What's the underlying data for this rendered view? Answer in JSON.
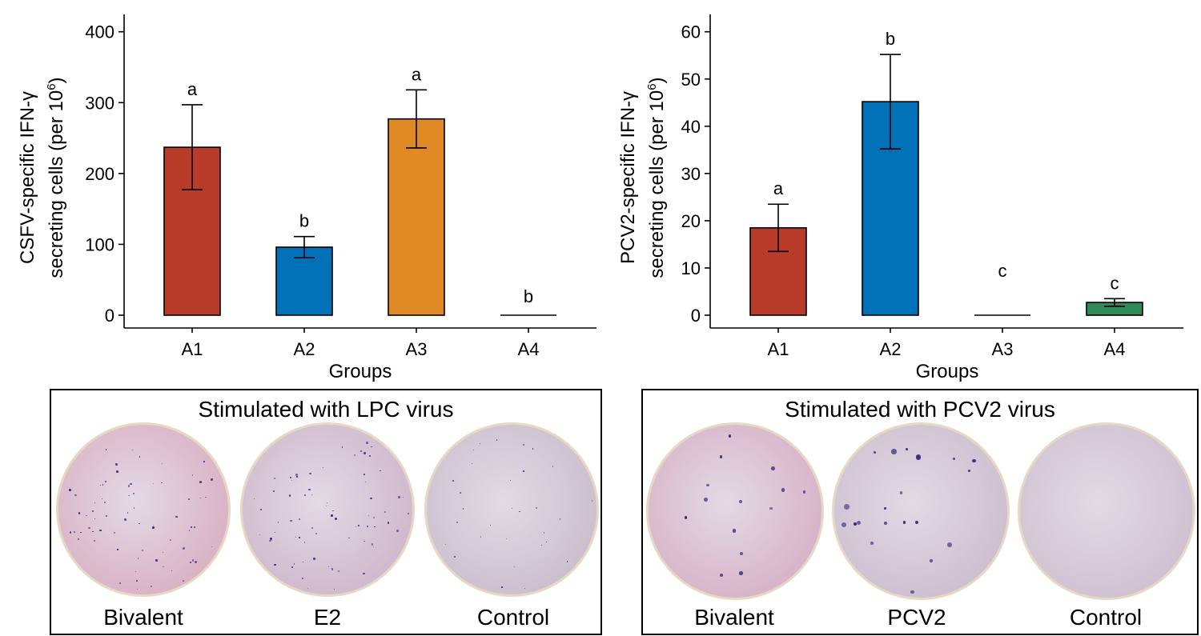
{
  "chart_data": [
    {
      "type": "bar",
      "xlabel": "Groups",
      "ylabel_lines": [
        "CSFV-specific IFN-γ",
        "secreting cells (per 10",
        "6",
        ")"
      ],
      "categories": [
        "A1",
        "A2",
        "A3",
        "A4"
      ],
      "values": [
        237,
        96,
        277,
        0
      ],
      "errors": [
        60,
        15,
        41,
        0
      ],
      "letters": [
        "a",
        "b",
        "a",
        "b"
      ],
      "colors": [
        "#b83c29",
        "#0071b6",
        "#e08a25",
        "#000000"
      ],
      "ylim": [
        0,
        420
      ],
      "yticks": [
        "0",
        "100",
        "200",
        "300",
        "400"
      ],
      "grid": false
    },
    {
      "type": "bar",
      "xlabel": "Groups",
      "ylabel_lines": [
        "PCV2-specific IFN-γ",
        "secreting cells (per 10",
        "6",
        ")"
      ],
      "categories": [
        "A1",
        "A2",
        "A3",
        "A4"
      ],
      "values": [
        18.5,
        45.2,
        0,
        2.7
      ],
      "errors": [
        5,
        10,
        0,
        0.8
      ],
      "letters": [
        "a",
        "b",
        "c",
        "c"
      ],
      "colors": [
        "#b83c29",
        "#0071b6",
        "#000000",
        "#2e8b57"
      ],
      "ylim": [
        0,
        63
      ],
      "yticks": [
        "0",
        "10",
        "20",
        "30",
        "40",
        "50",
        "60"
      ],
      "grid": false
    }
  ],
  "panels": [
    {
      "title": "Stimulated with LPC virus",
      "wells": [
        {
          "label": "Bivalent",
          "tint": "#d9b2c4",
          "spots": "many-fine"
        },
        {
          "label": "E2",
          "tint": "#cfb9cd",
          "spots": "many-fine"
        },
        {
          "label": "Control",
          "tint": "#cbbfcd",
          "spots": "few-fine"
        }
      ]
    },
    {
      "title": "Stimulated with PCV2 virus",
      "wells": [
        {
          "label": "Bivalent",
          "tint": "#d7b3c8",
          "spots": "few-large"
        },
        {
          "label": "PCV2",
          "tint": "#cdbfd0",
          "spots": "several-large"
        },
        {
          "label": "Control",
          "tint": "#cfc1d1",
          "spots": "none"
        }
      ]
    }
  ]
}
